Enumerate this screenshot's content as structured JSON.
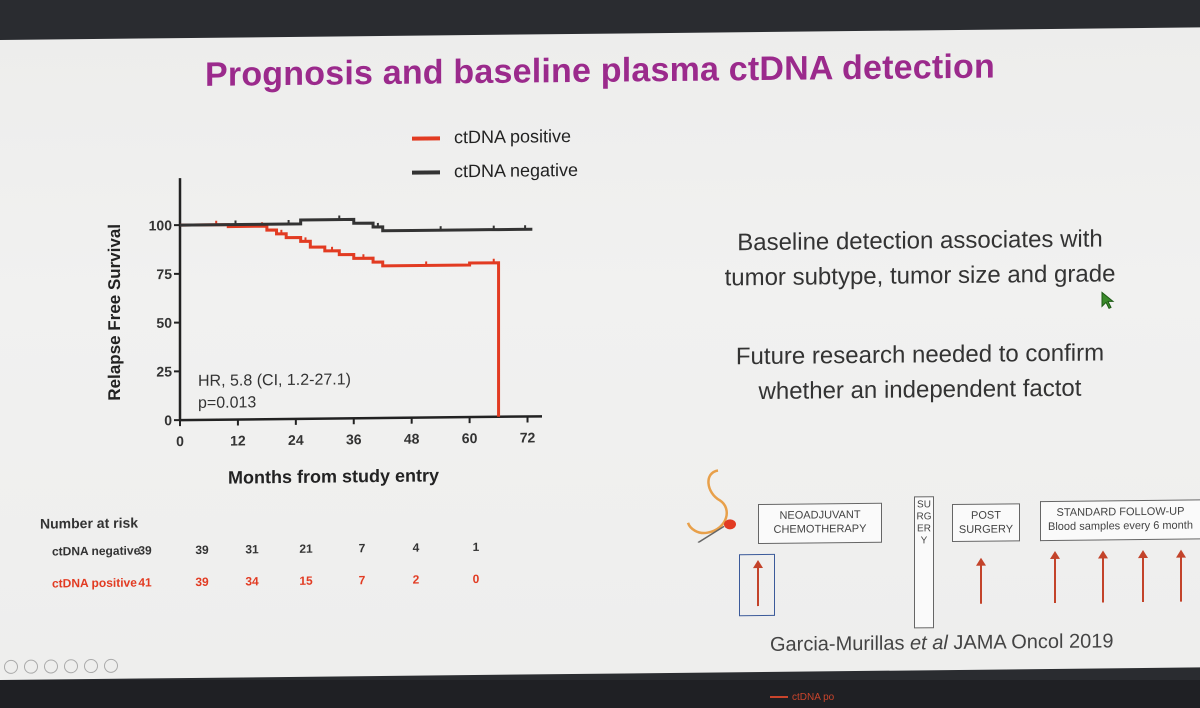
{
  "slide": {
    "title": "Prognosis and baseline plasma ctDNA detection",
    "findings": [
      "Baseline detection associates with",
      "tumor subtype, tumor size and grade"
    ],
    "future": [
      "Future research needed to confirm",
      "whether an independent factot"
    ],
    "citation": {
      "authors": "Garcia-Murillas",
      "etal": "et al",
      "journal": "JAMA Oncol 2019"
    },
    "bottom_legend": "ctDNA po"
  },
  "chart_data": {
    "type": "line",
    "title": "",
    "xlabel": "Months from study entry",
    "ylabel": "Relapse Free Survival",
    "xlim": [
      0,
      75
    ],
    "ylim": [
      0,
      100
    ],
    "xticks": [
      0,
      12,
      24,
      36,
      48,
      60,
      72
    ],
    "yticks": [
      0,
      25,
      50,
      75,
      100
    ],
    "legend_position": "top",
    "annotation": [
      "HR, 5.8 (CI, 1.2-27.1)",
      "p=0.013"
    ],
    "series": [
      {
        "name": "ctDNA positive",
        "color": "#e23b22",
        "x": [
          0,
          5,
          10,
          16,
          18,
          20,
          22,
          25,
          27,
          30,
          33,
          36,
          40,
          42,
          60,
          64,
          66
        ],
        "y": [
          100,
          100,
          99,
          99,
          97,
          95,
          93,
          91,
          88,
          86,
          84,
          82,
          80,
          78,
          79,
          79,
          0
        ]
      },
      {
        "name": "ctDNA negative",
        "color": "#333333",
        "x": [
          0,
          8,
          15,
          20,
          25,
          30,
          36,
          40,
          42,
          48,
          60,
          64,
          66,
          70,
          73
        ],
        "y": [
          100,
          100,
          100,
          100,
          102,
          102,
          100,
          98,
          96,
          96,
          96,
          96,
          96,
          96,
          96
        ]
      }
    ]
  },
  "risk_table": {
    "title": "Number at risk",
    "rows": [
      {
        "label": "ctDNA negative",
        "color": "#333333",
        "values": [
          "39",
          "39",
          "31",
          "21",
          "7",
          "4",
          "1"
        ]
      },
      {
        "label": "ctDNA positive",
        "color": "#e23b22",
        "values": [
          "41",
          "39",
          "34",
          "15",
          "7",
          "2",
          "0"
        ]
      }
    ]
  },
  "flow": {
    "neoadjuvant": [
      "NEOADJUVANT",
      "CHEMOTHERAPY"
    ],
    "surgery": "SURGERY",
    "post": [
      "POST",
      "SURGERY"
    ],
    "followup": [
      "STANDARD FOLLOW-UP",
      "Blood samples every 6 month"
    ]
  }
}
